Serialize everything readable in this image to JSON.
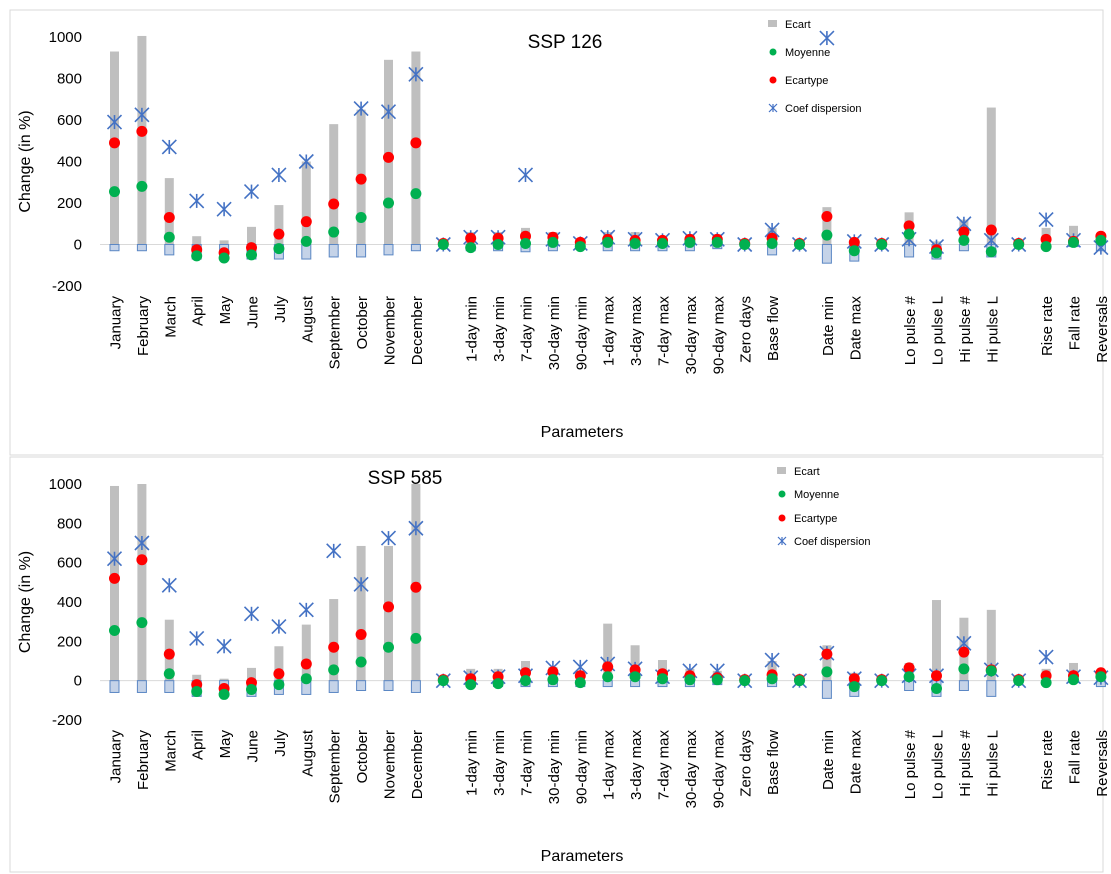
{
  "chart_data": [
    {
      "type": "bar",
      "title": "SSP 126",
      "xlabel": "Parameters",
      "ylabel": "Change (in %)",
      "ylim": [
        -200,
        1000
      ],
      "yticks": [
        -200,
        0,
        200,
        400,
        600,
        800,
        1000
      ],
      "grid": false,
      "legend_position": "top-right",
      "colors": {
        "ecart": "#bfbfbf",
        "ecart_neg_fill": "#c5d3e8",
        "ecart_neg_edge": "#5b87c4",
        "moyenne": "#00b050",
        "ecartype": "#ff0000",
        "coef": "#4472c4"
      },
      "categories": [
        "January",
        "February",
        "March",
        "April",
        "May",
        "June",
        "July",
        "August",
        "September",
        "October",
        "November",
        "December",
        "",
        "1-day min",
        "3-day min",
        "7-day min",
        "30-day min",
        "90-day min",
        "1-day max",
        "3-day max",
        "7-day max",
        "30-day max",
        "90-day max",
        "Zero days",
        "Base flow",
        "",
        "Date min",
        "Date max",
        "",
        "Lo pulse #",
        "Lo pulse L",
        "Hi pulse #",
        "Hi pulse L",
        "",
        "Rise rate",
        "Fall rate",
        "Reversals"
      ],
      "series": [
        {
          "name": "Ecart",
          "kind": "range",
          "low": [
            -30,
            -30,
            -50,
            -70,
            -70,
            -70,
            -70,
            -70,
            -60,
            -60,
            -50,
            -30,
            -5,
            -30,
            -30,
            -35,
            -30,
            -20,
            -30,
            -30,
            -30,
            -30,
            -20,
            -5,
            -50,
            -5,
            -90,
            -80,
            -5,
            -60,
            -70,
            -30,
            -60,
            -5,
            -20,
            -10,
            -30
          ],
          "high": [
            930,
            1005,
            320,
            40,
            20,
            85,
            190,
            400,
            580,
            650,
            890,
            930,
            10,
            60,
            60,
            80,
            60,
            30,
            60,
            60,
            30,
            50,
            50,
            5,
            80,
            10,
            180,
            30,
            10,
            155,
            15,
            120,
            660,
            10,
            80,
            90,
            50
          ]
        },
        {
          "name": "Moyenne",
          "kind": "point",
          "values": [
            255,
            280,
            35,
            -55,
            -65,
            -50,
            -20,
            15,
            60,
            130,
            200,
            245,
            0,
            -15,
            0,
            5,
            10,
            -10,
            10,
            5,
            5,
            10,
            10,
            0,
            5,
            0,
            45,
            -30,
            0,
            50,
            -40,
            20,
            -35,
            0,
            -10,
            10,
            20
          ]
        },
        {
          "name": "Ecartype",
          "kind": "point",
          "values": [
            490,
            545,
            130,
            -25,
            -40,
            -15,
            50,
            110,
            195,
            315,
            420,
            490,
            5,
            30,
            30,
            40,
            35,
            10,
            25,
            20,
            20,
            25,
            25,
            5,
            30,
            5,
            135,
            10,
            5,
            90,
            -25,
            60,
            70,
            5,
            25,
            15,
            40
          ]
        },
        {
          "name": "Coef dispersion",
          "kind": "star",
          "values": [
            590,
            625,
            470,
            210,
            170,
            255,
            335,
            400,
            null,
            655,
            640,
            820,
            0,
            35,
            35,
            335,
            25,
            5,
            35,
            25,
            20,
            30,
            25,
            0,
            70,
            0,
            995,
            15,
            0,
            25,
            -10,
            100,
            20,
            0,
            120,
            20,
            -15
          ]
        }
      ]
    },
    {
      "type": "bar",
      "title": "SSP 585",
      "xlabel": "Parameters",
      "ylabel": "Change (in %)",
      "ylim": [
        -200,
        1000
      ],
      "yticks": [
        -200,
        0,
        200,
        400,
        600,
        800,
        1000
      ],
      "grid": false,
      "legend_position": "top-right",
      "colors": {
        "ecart": "#bfbfbf",
        "ecart_neg_fill": "#c5d3e8",
        "ecart_neg_edge": "#5b87c4",
        "moyenne": "#00b050",
        "ecartype": "#ff0000",
        "coef": "#4472c4"
      },
      "categories": [
        "January",
        "February",
        "March",
        "April",
        "May",
        "June",
        "July",
        "August",
        "September",
        "October",
        "November",
        "December",
        "",
        "1-day min",
        "3-day min",
        "7-day min",
        "30-day min",
        "90-day min",
        "1-day max",
        "3-day max",
        "7-day max",
        "30-day max",
        "90-day max",
        "Zero days",
        "Base flow",
        "",
        "Date min",
        "Date max",
        "",
        "Lo pulse #",
        "Lo pulse L",
        "Hi pulse #",
        "Hi pulse L",
        "",
        "Rise rate",
        "Fall rate",
        "Reversals"
      ],
      "series": [
        {
          "name": "Ecart",
          "kind": "range",
          "low": [
            -60,
            -60,
            -60,
            -80,
            -80,
            -80,
            -70,
            -70,
            -60,
            -50,
            -50,
            -60,
            -5,
            -30,
            -30,
            -30,
            -30,
            -30,
            -30,
            -30,
            -30,
            -30,
            -20,
            -5,
            -30,
            -5,
            -90,
            -80,
            -5,
            -50,
            -80,
            -50,
            -80,
            -5,
            -20,
            -10,
            -30
          ],
          "high": [
            990,
            1000,
            310,
            30,
            10,
            65,
            175,
            285,
            415,
            685,
            685,
            1000,
            10,
            60,
            60,
            100,
            70,
            50,
            290,
            180,
            105,
            60,
            50,
            5,
            100,
            10,
            180,
            40,
            10,
            90,
            410,
            320,
            360,
            10,
            60,
            90,
            50
          ]
        },
        {
          "name": "Moyenne",
          "kind": "point",
          "values": [
            255,
            295,
            35,
            -55,
            -70,
            -45,
            -20,
            10,
            55,
            95,
            170,
            215,
            0,
            -20,
            -15,
            0,
            5,
            -10,
            20,
            20,
            10,
            5,
            5,
            0,
            10,
            0,
            45,
            -30,
            0,
            20,
            -40,
            60,
            50,
            0,
            -10,
            5,
            20
          ]
        },
        {
          "name": "Ecartype",
          "kind": "point",
          "values": [
            520,
            615,
            135,
            -20,
            -40,
            -10,
            35,
            85,
            170,
            235,
            375,
            475,
            5,
            10,
            20,
            40,
            45,
            25,
            70,
            55,
            35,
            25,
            15,
            5,
            30,
            5,
            135,
            10,
            5,
            65,
            25,
            145,
            55,
            5,
            25,
            25,
            40
          ]
        },
        {
          "name": "Coef dispersion",
          "kind": "star",
          "values": [
            620,
            700,
            485,
            215,
            175,
            340,
            275,
            360,
            660,
            490,
            725,
            775,
            0,
            15,
            20,
            25,
            65,
            70,
            85,
            60,
            20,
            50,
            50,
            0,
            105,
            0,
            140,
            10,
            0,
            25,
            25,
            190,
            55,
            0,
            120,
            20,
            15
          ]
        }
      ]
    }
  ]
}
